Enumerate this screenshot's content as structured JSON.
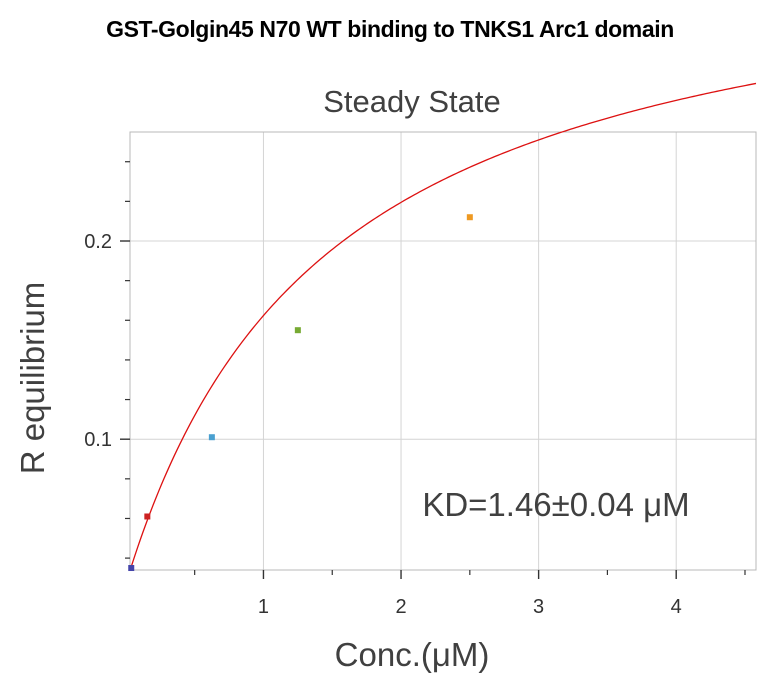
{
  "figure_title": "GST-Golgin45 N70 WT binding to TNKS1 Arc1 domain",
  "chart_data": {
    "type": "scatter",
    "title": "Steady State",
    "xlabel": "Conc.(μM)",
    "ylabel": "R equilibrium",
    "xlim": [
      0.03,
      4.58
    ],
    "ylim": [
      0.034,
      0.255
    ],
    "x_ticks": [
      1,
      2,
      3,
      4
    ],
    "x_tick_labels": [
      "1",
      "2",
      "3",
      "4"
    ],
    "y_ticks": [
      0.1,
      0.2
    ],
    "y_tick_labels": [
      "0.1",
      "0.2"
    ],
    "grid": true,
    "annotation": "KD=1.46±0.04 μM",
    "points": [
      {
        "x": 0.039,
        "y": 0.035,
        "color": "#4444aa"
      },
      {
        "x": 0.156,
        "y": 0.061,
        "color": "#cc2222"
      },
      {
        "x": 0.625,
        "y": 0.101,
        "color": "#4aa0d0"
      },
      {
        "x": 1.25,
        "y": 0.155,
        "color": "#77aa33"
      },
      {
        "x": 2.5,
        "y": 0.212,
        "color": "#ee9922"
      }
    ],
    "fit": {
      "model": "steady-state affinity",
      "kd": 1.46,
      "rmax": 0.333,
      "offset": 0.027,
      "color": "#dd1111"
    }
  }
}
